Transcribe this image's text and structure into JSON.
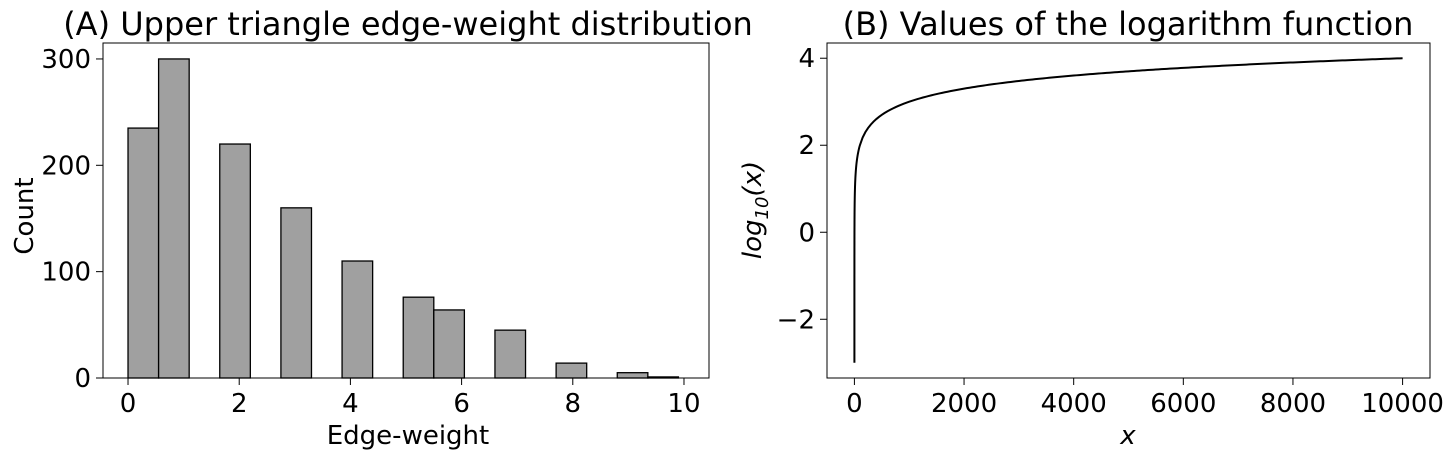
{
  "chart_data": [
    {
      "type": "bar",
      "title": "(A) Upper triangle edge-weight distribution",
      "xlabel": "Edge-weight",
      "ylabel": "Count",
      "xlim": [
        -0.45,
        10.45
      ],
      "ylim": [
        0,
        315
      ],
      "xticks": [
        0,
        2,
        4,
        6,
        8,
        10
      ],
      "xtick_labels": [
        "0",
        "2",
        "4",
        "6",
        "8",
        "10"
      ],
      "yticks": [
        0,
        100,
        200,
        300
      ],
      "ytick_labels": [
        "0",
        "100",
        "200",
        "300"
      ],
      "bars": [
        {
          "x0": 0.0,
          "x1": 0.55,
          "value": 235
        },
        {
          "x0": 0.55,
          "x1": 1.1,
          "value": 300
        },
        {
          "x0": 1.65,
          "x1": 2.2,
          "value": 220
        },
        {
          "x0": 2.75,
          "x1": 3.3,
          "value": 160
        },
        {
          "x0": 3.85,
          "x1": 4.4,
          "value": 110
        },
        {
          "x0": 4.95,
          "x1": 5.5,
          "value": 76
        },
        {
          "x0": 5.5,
          "x1": 6.05,
          "value": 64
        },
        {
          "x0": 6.6,
          "x1": 7.15,
          "value": 45
        },
        {
          "x0": 7.7,
          "x1": 8.25,
          "value": 14
        },
        {
          "x0": 8.8,
          "x1": 9.35,
          "value": 5
        },
        {
          "x0": 9.35,
          "x1": 9.9,
          "value": 1
        }
      ],
      "bar_color": "#a0a0a0",
      "edge_color": "#000000",
      "grid": false
    },
    {
      "type": "line",
      "title": "(B) Values of the logarithm function",
      "xlabel": "x",
      "ylabel": "log10(x)",
      "xlim": [
        -500,
        10500
      ],
      "ylim": [
        -3.35,
        4.35
      ],
      "xticks": [
        0,
        2000,
        4000,
        6000,
        8000,
        10000
      ],
      "xtick_labels": [
        "0",
        "2000",
        "4000",
        "6000",
        "8000",
        "10000"
      ],
      "yticks": [
        -2,
        0,
        2,
        4
      ],
      "ytick_labels": [
        "−2",
        "0",
        "2",
        "4"
      ],
      "function": "log10",
      "x_range": [
        0.001,
        10000
      ],
      "line_color": "#000000",
      "grid": false
    }
  ]
}
